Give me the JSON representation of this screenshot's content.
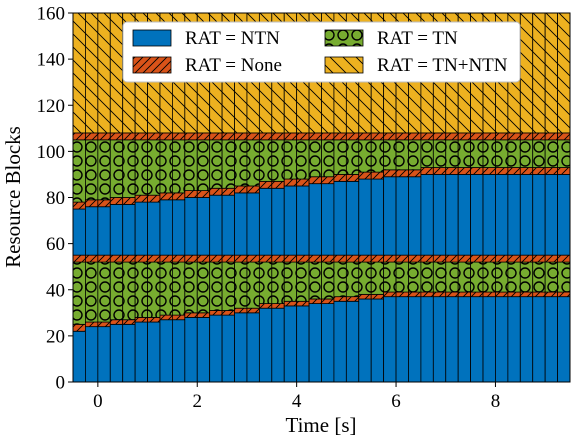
{
  "chart_data": {
    "type": "stacked-bar",
    "xlabel": "Time [s]",
    "ylabel": "Resource Blocks",
    "xlim": [
      -0.5,
      9.5
    ],
    "ylim": [
      0,
      160
    ],
    "xticks": [
      0,
      2,
      4,
      6,
      8
    ],
    "yticks": [
      0,
      20,
      40,
      60,
      80,
      100,
      120,
      140,
      160
    ],
    "bar_width_s": 0.25,
    "n_bars": 40,
    "x_start": -0.375,
    "x_step": 0.25,
    "legend_position": "top-center",
    "legend_entries": [
      {
        "key": "ntn",
        "label": "RAT = NTN"
      },
      {
        "key": "tn",
        "label": "RAT = TN"
      },
      {
        "key": "none",
        "label": "RAT = None"
      },
      {
        "key": "tnntn",
        "label": "RAT = TN+NTN"
      }
    ],
    "series_colors": {
      "ntn": "#0072bd",
      "none": "#d95319",
      "tn": "#77ac30",
      "tnntn": "#edb120"
    },
    "series_patterns": {
      "ntn": "solid",
      "none": "diagonal-hatch",
      "tn": "circles",
      "tnntn": "back-diagonal-hatch"
    },
    "note_stacking": "Each bar stacks bottom-to-top: NTN, None, TN, None, NTN, None, TN, None, TN+NTN (cumulative boundaries given below).",
    "boundaries": {
      "ntn_lower_top": [
        22,
        24,
        24,
        25,
        25,
        26,
        26,
        27,
        27,
        28,
        28,
        29,
        29,
        30,
        30,
        32,
        32,
        33,
        33,
        34,
        34,
        35,
        35,
        36,
        36,
        37,
        37,
        37,
        37,
        37,
        37,
        37,
        37,
        37,
        37,
        37,
        37,
        37,
        37,
        37
      ],
      "none_lower_top": [
        25,
        26,
        26,
        27,
        27,
        28,
        28,
        29,
        29,
        30,
        30,
        31,
        31,
        32,
        32,
        34,
        34,
        35,
        35,
        36,
        36,
        37,
        37,
        38,
        38,
        39,
        39,
        39,
        39,
        39,
        39,
        39,
        39,
        39,
        39,
        39,
        39,
        39,
        39,
        39
      ],
      "tn_lower_top": [
        52,
        52,
        52,
        52,
        52,
        52,
        52,
        52,
        52,
        52,
        52,
        52,
        52,
        52,
        52,
        52,
        52,
        52,
        52,
        52,
        52,
        52,
        52,
        52,
        52,
        52,
        52,
        52,
        52,
        52,
        52,
        52,
        52,
        52,
        52,
        52,
        52,
        52,
        52,
        52
      ],
      "none_mid_top": [
        55,
        55,
        55,
        55,
        55,
        55,
        55,
        55,
        55,
        55,
        55,
        55,
        55,
        55,
        55,
        55,
        55,
        55,
        55,
        55,
        55,
        55,
        55,
        55,
        55,
        55,
        55,
        55,
        55,
        55,
        55,
        55,
        55,
        55,
        55,
        55,
        55,
        55,
        55,
        55
      ],
      "ntn_upper_top": [
        75,
        76,
        76,
        77,
        77,
        78,
        78,
        79,
        79,
        80,
        80,
        81,
        81,
        82,
        82,
        84,
        84,
        85,
        85,
        86,
        86,
        87,
        87,
        88,
        88,
        89,
        89,
        89,
        90,
        90,
        90,
        90,
        90,
        90,
        90,
        90,
        90,
        90,
        90,
        90
      ],
      "none_upper_top": [
        78,
        79,
        79,
        80,
        80,
        81,
        81,
        82,
        82,
        83,
        83,
        84,
        84,
        85,
        85,
        87,
        87,
        88,
        88,
        89,
        89,
        90,
        90,
        91,
        91,
        92,
        92,
        92,
        93,
        93,
        93,
        93,
        93,
        93,
        93,
        93,
        93,
        93,
        93,
        93
      ],
      "tn_upper_top": [
        105,
        105,
        105,
        105,
        105,
        105,
        105,
        105,
        105,
        105,
        105,
        105,
        105,
        105,
        105,
        105,
        105,
        105,
        105,
        105,
        105,
        105,
        105,
        105,
        105,
        105,
        105,
        105,
        105,
        105,
        105,
        105,
        105,
        105,
        105,
        105,
        105,
        105,
        105,
        105
      ],
      "none_top_top": [
        108,
        108,
        108,
        108,
        108,
        108,
        108,
        108,
        108,
        108,
        108,
        108,
        108,
        108,
        108,
        108,
        108,
        108,
        108,
        108,
        108,
        108,
        108,
        108,
        108,
        108,
        108,
        108,
        108,
        108,
        108,
        108,
        108,
        108,
        108,
        108,
        108,
        108,
        108,
        108
      ],
      "tnntn_top": [
        160,
        160,
        160,
        160,
        160,
        160,
        160,
        160,
        160,
        160,
        160,
        160,
        160,
        160,
        160,
        160,
        160,
        160,
        160,
        160,
        160,
        160,
        160,
        160,
        160,
        160,
        160,
        160,
        160,
        160,
        160,
        160,
        160,
        160,
        160,
        160,
        160,
        160,
        160,
        160
      ]
    }
  }
}
